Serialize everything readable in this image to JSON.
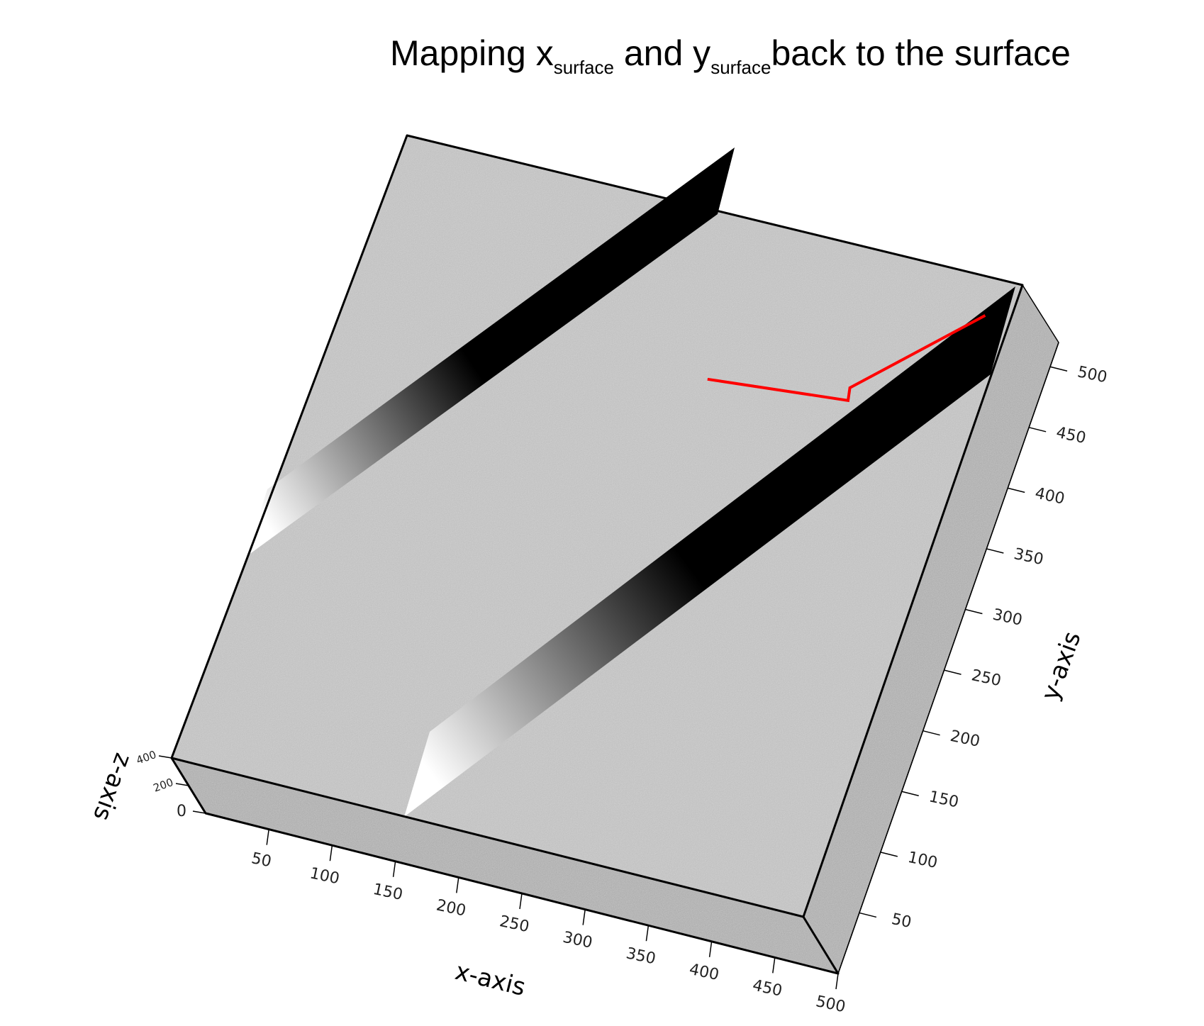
{
  "chart_data": {
    "type": "surface3d",
    "title": {
      "parts": [
        {
          "text": "Mapping x",
          "sub": false
        },
        {
          "text": "surface",
          "sub": true
        },
        {
          "text": " and y",
          "sub": false
        },
        {
          "text": "surface",
          "sub": true
        },
        {
          "text": "back to the surface",
          "sub": false
        }
      ]
    },
    "xlabel": "x-axis",
    "ylabel": "y-axis",
    "zlabel": "z-axis",
    "xlim": [
      0,
      500
    ],
    "ylim": [
      0,
      520
    ],
    "zlim": [
      0,
      400
    ],
    "x_ticks": [
      50,
      100,
      150,
      200,
      250,
      300,
      350,
      400,
      450,
      500
    ],
    "y_ticks": [
      50,
      100,
      150,
      200,
      250,
      300,
      350,
      400,
      450,
      500
    ],
    "z_ticks": [
      0,
      200,
      400
    ],
    "surface_color": "#bdbdbd",
    "ridge_color_light": "#ffffff",
    "ridge_color_dark": "#000000",
    "path_color": "#ff0000",
    "path": [
      {
        "x": 290,
        "y": 390
      },
      {
        "x": 400,
        "y": 400
      },
      {
        "x": 398,
        "y": 410
      },
      {
        "x": 480,
        "y": 490
      }
    ]
  }
}
